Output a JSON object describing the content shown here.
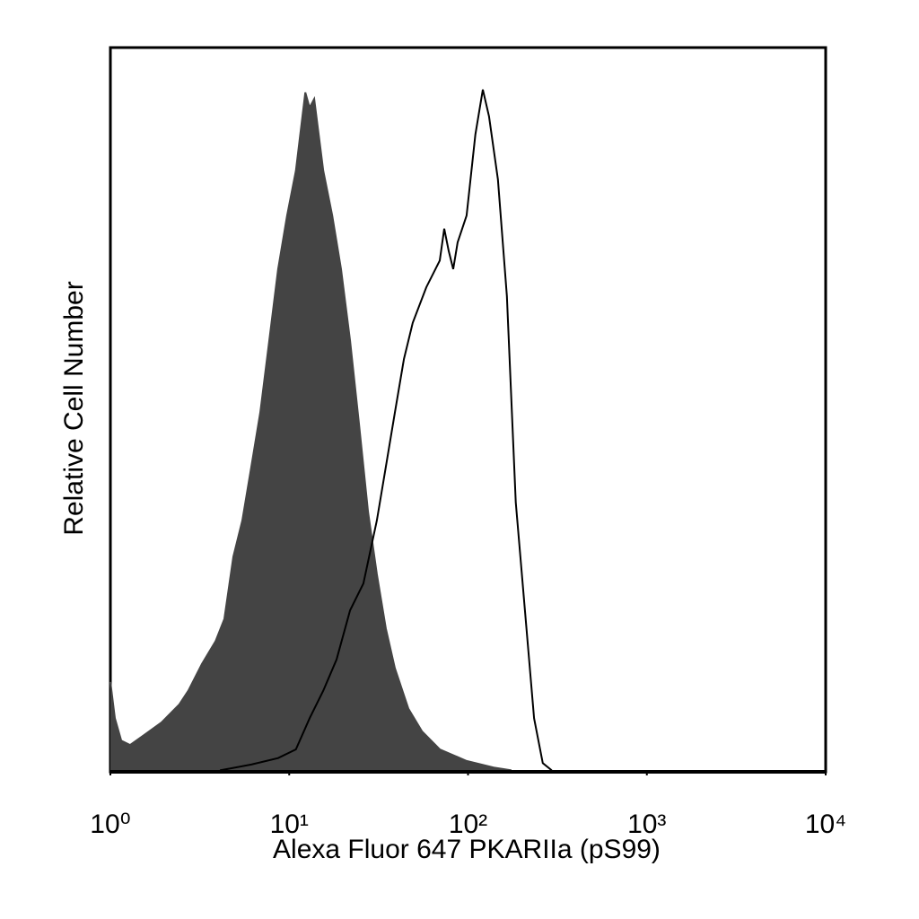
{
  "chart_data": {
    "type": "histogram-overlay",
    "x_label": "Alexa Fluor 647 PKARIIa (pS99)",
    "y_label": "Relative Cell Number",
    "xscale": "log",
    "xlim": [
      1,
      10000
    ],
    "xticks": [
      {
        "value": 1,
        "label": "10⁰"
      },
      {
        "value": 10,
        "label": "10¹"
      },
      {
        "value": 100,
        "label": "10²"
      },
      {
        "value": 1000,
        "label": "10³"
      },
      {
        "value": 10000,
        "label": "10⁴"
      }
    ],
    "ylim": [
      0,
      100
    ],
    "series": [
      {
        "color": "#444444",
        "filled": true,
        "x": [
          1,
          1.06,
          1.15,
          1.29,
          1.53,
          1.93,
          2.43,
          2.73,
          3.25,
          3.87,
          4.34,
          4.87,
          5.47,
          6.14,
          6.89,
          7.73,
          8.67,
          9.73,
          10.9,
          12.3,
          13.0,
          13.8,
          15.5,
          17.4,
          19.5,
          21.9,
          24.5,
          27.6,
          30.9,
          34.7,
          39.0,
          46.4,
          55.2,
          69.5,
          98.2,
          139,
          175
        ],
        "values": [
          12.4,
          7.4,
          4.3,
          3.7,
          5.0,
          6.8,
          9.3,
          11.2,
          14.9,
          18.0,
          21.1,
          29.7,
          34.7,
          42.1,
          49.6,
          59.5,
          69.4,
          76.8,
          83.0,
          93.8,
          91.7,
          92.9,
          83.0,
          76.8,
          69.4,
          59.5,
          48.3,
          35.9,
          27.3,
          19.8,
          14.3,
          8.7,
          5.6,
          3.1,
          1.5,
          0.6,
          0.2
        ]
      },
      {
        "color": "#000000",
        "filled": false,
        "x": [
          4.1,
          6.14,
          8.67,
          10.9,
          13.0,
          15.5,
          18.4,
          21.9,
          26.0,
          30.9,
          34.7,
          39.0,
          43.8,
          49.1,
          58.4,
          69.5,
          73.6,
          78.0,
          82.6,
          87.5,
          98.2,
          110,
          121,
          131,
          147,
          165,
          185,
          208,
          234,
          262,
          294
        ],
        "values": [
          0.2,
          1.0,
          1.9,
          3.1,
          7.4,
          11.2,
          15.5,
          22.3,
          26.0,
          34.7,
          42.1,
          49.6,
          57.0,
          62.0,
          66.9,
          70.6,
          75.0,
          71.9,
          69.4,
          73.1,
          76.8,
          88.0,
          94.2,
          90.5,
          81.8,
          65.7,
          37.2,
          22.3,
          7.4,
          1.2,
          0.2
        ]
      }
    ]
  }
}
